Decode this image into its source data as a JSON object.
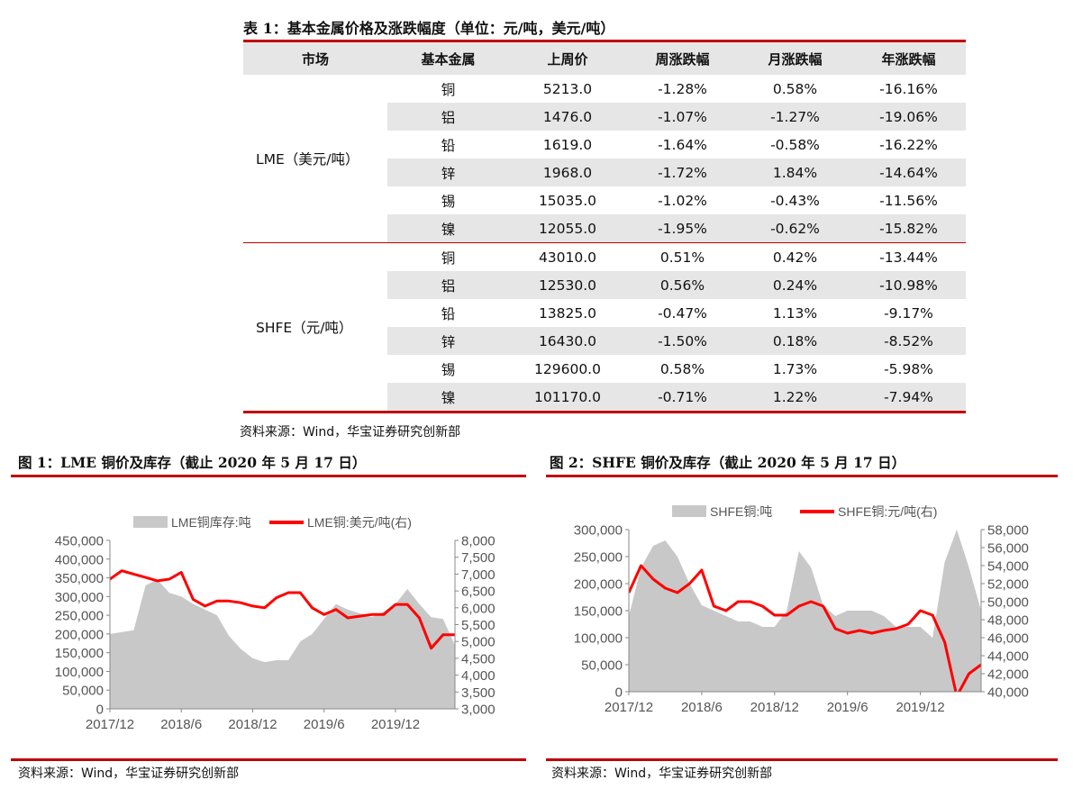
{
  "table": {
    "title": "表 1：基本金属价格及涨跌幅度（单位：元/吨，美元/吨）",
    "headers": [
      "市场",
      "基本金属",
      "上周价",
      "周涨跌幅",
      "月涨跌幅",
      "年涨跌幅"
    ],
    "groups": [
      {
        "market": "LME（美元/吨）",
        "rows": [
          {
            "metal": "铜",
            "price": "5213.0",
            "week": "-1.28%",
            "month": "0.58%",
            "year": "-16.16%"
          },
          {
            "metal": "铝",
            "price": "1476.0",
            "week": "-1.07%",
            "month": "-1.27%",
            "year": "-19.06%"
          },
          {
            "metal": "铅",
            "price": "1619.0",
            "week": "-1.64%",
            "month": "-0.58%",
            "year": "-16.22%"
          },
          {
            "metal": "锌",
            "price": "1968.0",
            "week": "-1.72%",
            "month": "1.84%",
            "year": "-14.64%"
          },
          {
            "metal": "锡",
            "price": "15035.0",
            "week": "-1.02%",
            "month": "-0.43%",
            "year": "-11.56%"
          },
          {
            "metal": "镍",
            "price": "12055.0",
            "week": "-1.95%",
            "month": "-0.62%",
            "year": "-15.82%"
          }
        ]
      },
      {
        "market": "SHFE（元/吨）",
        "rows": [
          {
            "metal": "铜",
            "price": "43010.0",
            "week": "0.51%",
            "month": "0.42%",
            "year": "-13.44%"
          },
          {
            "metal": "铝",
            "price": "12530.0",
            "week": "0.56%",
            "month": "0.24%",
            "year": "-10.98%"
          },
          {
            "metal": "铅",
            "price": "13825.0",
            "week": "-0.47%",
            "month": "1.13%",
            "year": "-9.17%"
          },
          {
            "metal": "锌",
            "price": "16430.0",
            "week": "-1.50%",
            "month": "0.18%",
            "year": "-8.52%"
          },
          {
            "metal": "锡",
            "price": "129600.0",
            "week": "0.58%",
            "month": "1.73%",
            "year": "-5.98%"
          },
          {
            "metal": "镍",
            "price": "101170.0",
            "week": "-0.71%",
            "month": "1.22%",
            "year": "-7.94%"
          }
        ]
      }
    ],
    "source": "资料来源：Wind，华宝证券研究创新部"
  },
  "figures": [
    {
      "title": "图 1：LME 铜价及库存（截止 2020 年 5 月 17 日）",
      "source": "资料来源：Wind，华宝证券研究创新部"
    },
    {
      "title": "图 2：SHFE 铜价及库存（截止 2020 年 5 月 17 日）",
      "source": "资料来源：Wind，华宝证券研究创新部"
    }
  ],
  "colors": {
    "accent": "#c00000",
    "area": "#c8c8c8",
    "line": "#ff0000",
    "shade": "#e6e6e6"
  },
  "chart_data": [
    {
      "type": "area",
      "title": "",
      "legend": "top",
      "x_ticks": [
        "2017/12",
        "2018/6",
        "2018/12",
        "2019/6",
        "2019/12"
      ],
      "x_range": [
        "2017/12",
        "2020/5"
      ],
      "y_left": {
        "min": 0,
        "max": 450000,
        "step": 50000,
        "ticks": [
          "0",
          "50,000",
          "100,000",
          "150,000",
          "200,000",
          "250,000",
          "300,000",
          "350,000",
          "400,000",
          "450,000"
        ]
      },
      "y_right": {
        "min": 3000,
        "max": 8000,
        "step": 500,
        "ticks": [
          "3,000",
          "3,500",
          "4,000",
          "4,500",
          "5,000",
          "5,500",
          "6,000",
          "6,500",
          "7,000",
          "7,500",
          "8,000"
        ]
      },
      "series": [
        {
          "name": "LME铜库存:吨",
          "type": "area",
          "axis": "left",
          "x": [
            "2017/12",
            "2018/1",
            "2018/2",
            "2018/3",
            "2018/4",
            "2018/5",
            "2018/6",
            "2018/7",
            "2018/8",
            "2018/9",
            "2018/10",
            "2018/11",
            "2018/12",
            "2019/1",
            "2019/2",
            "2019/3",
            "2019/4",
            "2019/5",
            "2019/6",
            "2019/7",
            "2019/8",
            "2019/9",
            "2019/10",
            "2019/11",
            "2019/12",
            "2020/1",
            "2020/2",
            "2020/3",
            "2020/4",
            "2020/5"
          ],
          "values": [
            200000,
            205000,
            210000,
            330000,
            345000,
            310000,
            300000,
            280000,
            265000,
            250000,
            195000,
            160000,
            135000,
            125000,
            130000,
            130000,
            180000,
            200000,
            240000,
            280000,
            265000,
            255000,
            245000,
            260000,
            280000,
            320000,
            280000,
            245000,
            240000,
            170000
          ]
        },
        {
          "name": "LME铜:美元/吨(右)",
          "type": "line",
          "axis": "right",
          "x": [
            "2017/12",
            "2018/1",
            "2018/2",
            "2018/3",
            "2018/4",
            "2018/5",
            "2018/6",
            "2018/7",
            "2018/8",
            "2018/9",
            "2018/10",
            "2018/11",
            "2018/12",
            "2019/1",
            "2019/2",
            "2019/3",
            "2019/4",
            "2019/5",
            "2019/6",
            "2019/7",
            "2019/8",
            "2019/9",
            "2019/10",
            "2019/11",
            "2019/12",
            "2020/1",
            "2020/2",
            "2020/3",
            "2020/4",
            "2020/5"
          ],
          "values": [
            6850,
            7100,
            7000,
            6900,
            6800,
            6850,
            7050,
            6250,
            6050,
            6200,
            6200,
            6150,
            6050,
            6000,
            6300,
            6450,
            6450,
            6000,
            5800,
            5950,
            5700,
            5750,
            5800,
            5800,
            6100,
            6100,
            5700,
            4800,
            5200,
            5200
          ]
        }
      ]
    },
    {
      "type": "area",
      "title": "",
      "legend": "top",
      "x_ticks": [
        "2017/12",
        "2018/6",
        "2018/12",
        "2019/6",
        "2019/12"
      ],
      "x_range": [
        "2017/12",
        "2020/5"
      ],
      "y_left": {
        "min": 0,
        "max": 300000,
        "step": 50000,
        "ticks": [
          "0",
          "50,000",
          "100,000",
          "150,000",
          "200,000",
          "250,000",
          "300,000"
        ]
      },
      "y_right": {
        "min": 40000,
        "max": 58000,
        "step": 2000,
        "ticks": [
          "40,000",
          "42,000",
          "44,000",
          "46,000",
          "48,000",
          "50,000",
          "52,000",
          "54,000",
          "56,000",
          "58,000"
        ]
      },
      "series": [
        {
          "name": "SHFE铜:吨",
          "type": "area",
          "axis": "left",
          "x": [
            "2017/12",
            "2018/1",
            "2018/2",
            "2018/3",
            "2018/4",
            "2018/5",
            "2018/6",
            "2018/7",
            "2018/8",
            "2018/9",
            "2018/10",
            "2018/11",
            "2018/12",
            "2019/1",
            "2019/2",
            "2019/3",
            "2019/4",
            "2019/5",
            "2019/6",
            "2019/7",
            "2019/8",
            "2019/9",
            "2019/10",
            "2019/11",
            "2019/12",
            "2020/1",
            "2020/2",
            "2020/3",
            "2020/4",
            "2020/5"
          ],
          "values": [
            140000,
            230000,
            270000,
            280000,
            250000,
            200000,
            160000,
            150000,
            140000,
            130000,
            130000,
            120000,
            120000,
            150000,
            260000,
            230000,
            160000,
            140000,
            150000,
            150000,
            150000,
            140000,
            120000,
            120000,
            120000,
            100000,
            240000,
            300000,
            230000,
            150000
          ]
        },
        {
          "name": "SHFE铜:元/吨(右)",
          "type": "line",
          "axis": "right",
          "x": [
            "2017/12",
            "2018/1",
            "2018/2",
            "2018/3",
            "2018/4",
            "2018/5",
            "2018/6",
            "2018/7",
            "2018/8",
            "2018/9",
            "2018/10",
            "2018/11",
            "2018/12",
            "2019/1",
            "2019/2",
            "2019/3",
            "2019/4",
            "2019/5",
            "2019/6",
            "2019/7",
            "2019/8",
            "2019/9",
            "2019/10",
            "2019/11",
            "2019/12",
            "2020/1",
            "2020/2",
            "2020/3",
            "2020/4",
            "2020/5"
          ],
          "values": [
            51000,
            54000,
            52500,
            51500,
            51000,
            52000,
            53500,
            49500,
            49000,
            50000,
            50000,
            49500,
            48500,
            48500,
            49500,
            50000,
            49500,
            47000,
            46500,
            46800,
            46500,
            46800,
            47000,
            47500,
            49000,
            48500,
            45500,
            39500,
            42000,
            43000
          ]
        }
      ]
    }
  ]
}
